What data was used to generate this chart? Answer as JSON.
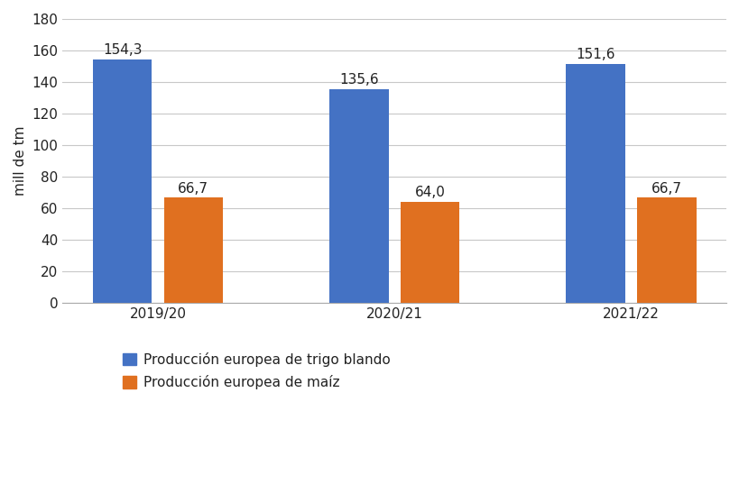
{
  "categories": [
    "2019/20",
    "2020/21",
    "2021/22"
  ],
  "trigo_values": [
    154.3,
    135.6,
    151.6
  ],
  "maiz_values": [
    66.7,
    64.0,
    66.7
  ],
  "trigo_color": "#4472C4",
  "maiz_color": "#E07020",
  "ylabel": "mill de tm",
  "ylim": [
    0,
    180
  ],
  "yticks": [
    0,
    20,
    40,
    60,
    80,
    100,
    120,
    140,
    160,
    180
  ],
  "legend_trigo": "Producción europea de trigo blando",
  "legend_maiz": "Producción europea de maíz",
  "bar_width": 0.25,
  "bar_gap": 0.05,
  "label_fontsize": 11,
  "tick_fontsize": 11,
  "ylabel_fontsize": 11,
  "legend_fontsize": 11,
  "background_color": "#ffffff",
  "grid_color": "#c8c8c8"
}
